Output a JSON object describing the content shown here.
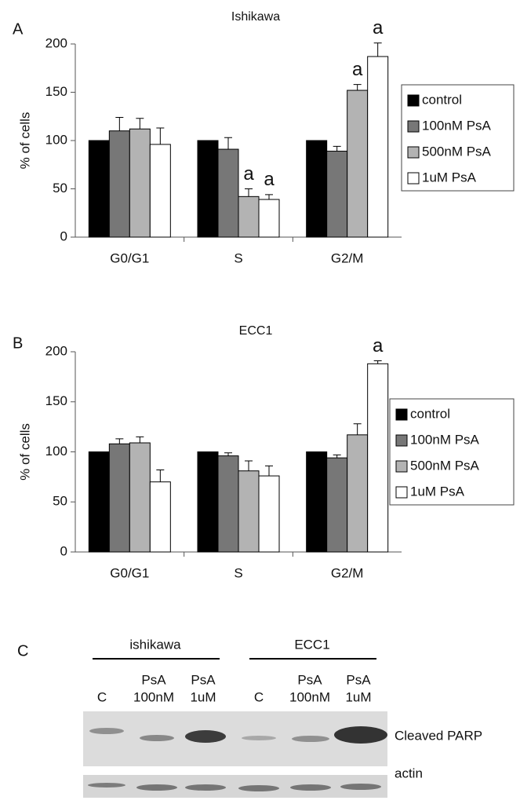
{
  "chart_data": [
    {
      "type": "bar",
      "panel_label": "A",
      "title": "Ishikawa",
      "ylabel": "% of cells",
      "categories": [
        "G0/G1",
        "S",
        "G2/M"
      ],
      "ylim": [
        0,
        200
      ],
      "yticks": [
        0,
        50,
        100,
        150,
        200
      ],
      "series": [
        {
          "name": "control",
          "color": "#000000",
          "values": [
            100,
            100,
            100
          ],
          "errors": [
            0,
            0,
            0
          ],
          "annotations": [
            null,
            null,
            null
          ]
        },
        {
          "name": "100nM PsA",
          "color": "#777777",
          "values": [
            110,
            91,
            89
          ],
          "errors": [
            14,
            12,
            5
          ],
          "annotations": [
            null,
            null,
            null
          ]
        },
        {
          "name": "500nM PsA",
          "color": "#b3b3b3",
          "values": [
            112,
            42,
            152
          ],
          "errors": [
            11,
            8,
            6
          ],
          "annotations": [
            null,
            "a",
            "a"
          ]
        },
        {
          "name": "1uM PsA",
          "color": "#ffffff",
          "values": [
            96,
            39,
            187
          ],
          "errors": [
            17,
            5,
            14
          ],
          "annotations": [
            null,
            "a",
            "a"
          ]
        }
      ]
    },
    {
      "type": "bar",
      "panel_label": "B",
      "title": "ECC1",
      "ylabel": "% of cells",
      "categories": [
        "G0/G1",
        "S",
        "G2/M"
      ],
      "ylim": [
        0,
        200
      ],
      "yticks": [
        0,
        50,
        100,
        150,
        200
      ],
      "series": [
        {
          "name": "control",
          "color": "#000000",
          "values": [
            100,
            100,
            100
          ],
          "errors": [
            0,
            0,
            0
          ],
          "annotations": [
            null,
            null,
            null
          ]
        },
        {
          "name": "100nM PsA",
          "color": "#777777",
          "values": [
            108,
            96,
            94
          ],
          "errors": [
            5,
            3,
            3
          ],
          "annotations": [
            null,
            null,
            null
          ]
        },
        {
          "name": "500nM PsA",
          "color": "#b3b3b3",
          "values": [
            109,
            81,
            117
          ],
          "errors": [
            6,
            10,
            11
          ],
          "annotations": [
            null,
            null,
            null
          ]
        },
        {
          "name": "1uM PsA",
          "color": "#ffffff",
          "values": [
            70,
            76,
            188
          ],
          "errors": [
            12,
            10,
            3
          ],
          "annotations": [
            null,
            null,
            "a"
          ]
        }
      ]
    }
  ],
  "blot": {
    "panel_label": "C",
    "groups": [
      {
        "name": "ishikawa",
        "lanes": [
          [
            "C"
          ],
          [
            "PsA",
            "100nM"
          ],
          [
            "PsA",
            "1uM"
          ]
        ]
      },
      {
        "name": "ECC1",
        "lanes": [
          [
            "C"
          ],
          [
            "PsA",
            "100nM"
          ],
          [
            "PsA",
            "1uM"
          ]
        ]
      }
    ],
    "rows": [
      "Cleaved PARP",
      "actin"
    ]
  }
}
